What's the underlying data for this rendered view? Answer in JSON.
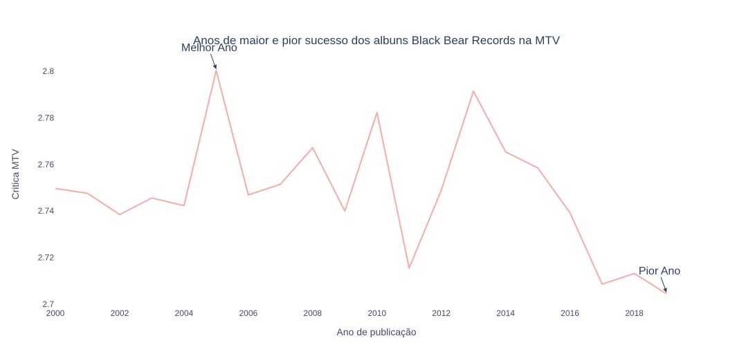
{
  "chart_data": {
    "type": "line",
    "title": "Anos de maior e pior sucesso dos albuns Black Bear Records na MTV",
    "xlabel": "Ano de publicação",
    "ylabel": "Critica MTV",
    "xlim": [
      2000,
      2020.4
    ],
    "ylim": [
      2.7,
      2.8
    ],
    "x_ticks": [
      "2000",
      "2002",
      "2004",
      "2006",
      "2008",
      "2010",
      "2012",
      "2014",
      "2016",
      "2018"
    ],
    "y_ticks": [
      "2.7",
      "2.72",
      "2.74",
      "2.76",
      "2.78",
      "2.8"
    ],
    "grid": false,
    "line_color": "#f4aca6",
    "series": [
      {
        "x": [
          2000,
          2001,
          2002,
          2003,
          2004,
          2005,
          2006,
          2007,
          2008,
          2009,
          2010,
          2011,
          2012,
          2013,
          2014,
          2015,
          2016,
          2017,
          2018,
          2019
        ],
        "values": [
          2.7497,
          2.7476,
          2.7385,
          2.7456,
          2.7423,
          2.8003,
          2.7469,
          2.7515,
          2.7672,
          2.74,
          2.7823,
          2.7155,
          2.749,
          2.7914,
          2.7654,
          2.7585,
          2.7393,
          2.7086,
          2.7132,
          2.7045
        ]
      }
    ],
    "annotations": [
      {
        "text": "Melhor Ano",
        "x": 2005,
        "y": 2.8003
      },
      {
        "text": "Pior Ano",
        "x": 2019,
        "y": 2.7045
      }
    ]
  }
}
